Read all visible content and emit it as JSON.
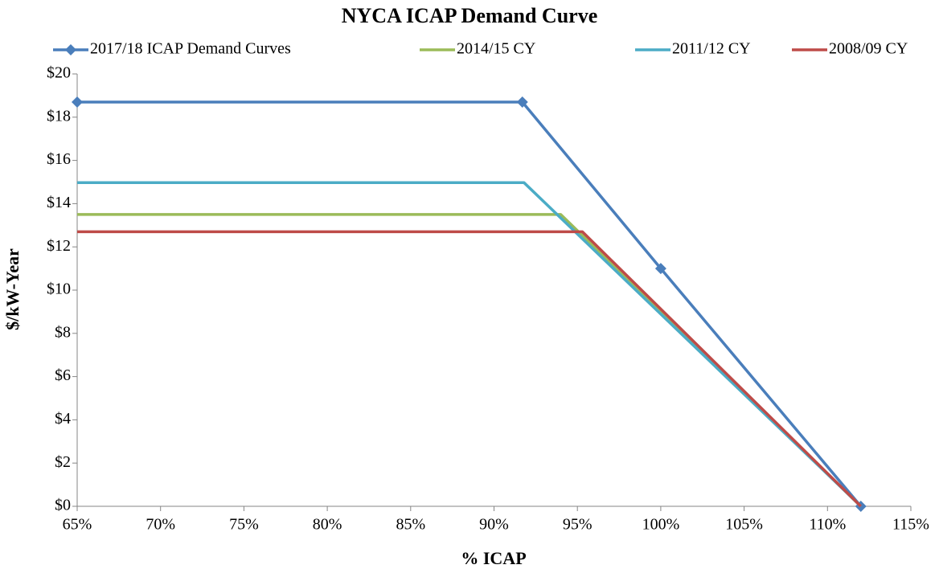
{
  "chart_data": {
    "type": "line",
    "title": "NYCA ICAP Demand Curve",
    "x_label": "% ICAP",
    "y_label": "$/kW-Year",
    "series": [
      {
        "name": "2017/18 ICAP Demand Curves",
        "color": "#4a7ebb",
        "marker": "diamond",
        "x": [
          65,
          91.7,
          100,
          112
        ],
        "values": [
          18.7,
          18.7,
          11.0,
          0
        ]
      },
      {
        "name": "2014/15 CY",
        "color": "#9bbb59",
        "x": [
          65,
          94,
          112
        ],
        "values": [
          13.5,
          13.5,
          0
        ]
      },
      {
        "name": "2011/12 CY",
        "color": "#4bacc6",
        "x": [
          65,
          91.8,
          112
        ],
        "values": [
          14.97,
          14.97,
          0
        ]
      },
      {
        "name": "2008/09 CY",
        "color": "#be4b48",
        "x": [
          65,
          95.3,
          112
        ],
        "values": [
          12.7,
          12.7,
          0
        ]
      }
    ],
    "xlim": [
      65,
      115
    ],
    "xticks": [
      {
        "value": 65,
        "label": "65%"
      },
      {
        "value": 70,
        "label": "70%"
      },
      {
        "value": 75,
        "label": "75%"
      },
      {
        "value": 80,
        "label": "80%"
      },
      {
        "value": 85,
        "label": "85%"
      },
      {
        "value": 90,
        "label": "90%"
      },
      {
        "value": 95,
        "label": "95%"
      },
      {
        "value": 100,
        "label": "100%"
      },
      {
        "value": 105,
        "label": "105%"
      },
      {
        "value": 110,
        "label": "110%"
      },
      {
        "value": 115,
        "label": "115%"
      }
    ],
    "ylim": [
      0,
      20
    ],
    "yticks": [
      {
        "value": 0,
        "label": "$0"
      },
      {
        "value": 2,
        "label": "$2"
      },
      {
        "value": 4,
        "label": "$4"
      },
      {
        "value": 6,
        "label": "$6"
      },
      {
        "value": 8,
        "label": "$8"
      },
      {
        "value": 10,
        "label": "$10"
      },
      {
        "value": 12,
        "label": "$12"
      },
      {
        "value": 14,
        "label": "$14"
      },
      {
        "value": 16,
        "label": "$16"
      },
      {
        "value": 18,
        "label": "$18"
      },
      {
        "value": 20,
        "label": "$20"
      }
    ],
    "grid": false,
    "legend": "top"
  }
}
